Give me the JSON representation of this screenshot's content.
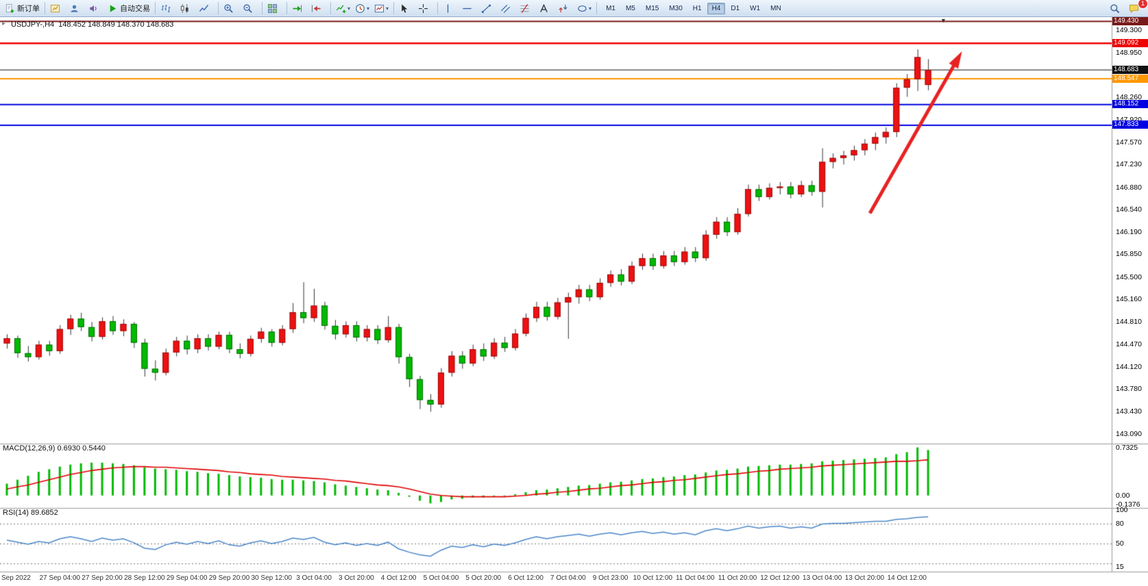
{
  "toolbar": {
    "groups": [
      {
        "items": [
          {
            "name": "new-order",
            "icon": "neworder",
            "label": "新订单"
          }
        ]
      },
      {
        "items": [
          {
            "name": "new-chart",
            "icon": "charts"
          },
          {
            "name": "profiles",
            "icon": "profiles"
          },
          {
            "name": "market-watch",
            "icon": "sound"
          },
          {
            "name": "auto-trading",
            "icon": "play",
            "label": "自动交易"
          }
        ]
      },
      {
        "items": [
          {
            "name": "bar-chart-mode",
            "icon": "bars"
          },
          {
            "name": "candlestick-mode",
            "icon": "candles"
          },
          {
            "name": "line-chart-mode",
            "icon": "linechart"
          }
        ]
      },
      {
        "items": [
          {
            "name": "zoom-in",
            "icon": "zoomin"
          },
          {
            "name": "zoom-out",
            "icon": "zoomout"
          }
        ]
      },
      {
        "items": [
          {
            "name": "tile-windows",
            "icon": "tile"
          }
        ]
      },
      {
        "items": [
          {
            "name": "auto-scroll",
            "icon": "autoscroll"
          },
          {
            "name": "chart-shift",
            "icon": "shift"
          }
        ]
      },
      {
        "items": [
          {
            "name": "indicators",
            "icon": "indicators",
            "dropdown": true
          },
          {
            "name": "periods",
            "icon": "clock",
            "dropdown": true
          },
          {
            "name": "templates",
            "icon": "template",
            "dropdown": true
          }
        ]
      },
      {
        "items": [
          {
            "name": "cursor-tool",
            "icon": "cursor"
          },
          {
            "name": "crosshair-tool",
            "icon": "crosshair"
          }
        ]
      },
      {
        "items": [
          {
            "name": "vertical-line-tool",
            "icon": "vline"
          },
          {
            "name": "horizontal-line-tool",
            "icon": "hline"
          },
          {
            "name": "trendline-tool",
            "icon": "trend"
          },
          {
            "name": "channel-tool",
            "icon": "channel"
          },
          {
            "name": "fibonacci-tool",
            "icon": "fibo"
          },
          {
            "name": "text-tool",
            "icon": "textA"
          },
          {
            "name": "arrows-tool",
            "icon": "arrows"
          },
          {
            "name": "shapes-tool",
            "icon": "shapes",
            "dropdown": true
          }
        ]
      }
    ],
    "timeframes": [
      {
        "label": "M1"
      },
      {
        "label": "M5"
      },
      {
        "label": "M15"
      },
      {
        "label": "M30"
      },
      {
        "label": "H1"
      },
      {
        "label": "H4",
        "active": true
      },
      {
        "label": "D1"
      },
      {
        "label": "W1"
      },
      {
        "label": "MN"
      }
    ],
    "right_items": [
      {
        "name": "search",
        "icon": "search"
      },
      {
        "name": "notifications",
        "icon": "chat",
        "badge": "1"
      }
    ]
  },
  "chart": {
    "symbol_period": "USDJPY-,H4",
    "ohlc": "148.452 148.849 148.370 148.683",
    "shift_marker": "▼",
    "one_click_marker": "▸"
  },
  "chart_data": {
    "type": "candlestick",
    "symbol": "USDJPY-",
    "timeframe": "H4",
    "title": "USDJPY-,H4 148.452 148.849 148.370 148.683",
    "candles": [
      [
        144.48,
        144.62,
        144.4,
        144.56
      ],
      [
        144.56,
        144.6,
        144.26,
        144.33
      ],
      [
        144.33,
        144.44,
        144.2,
        144.27
      ],
      [
        144.27,
        144.52,
        144.23,
        144.46
      ],
      [
        144.46,
        144.52,
        144.29,
        144.36
      ],
      [
        144.36,
        144.76,
        144.32,
        144.7
      ],
      [
        144.7,
        144.92,
        144.61,
        144.86
      ],
      [
        144.86,
        144.95,
        144.67,
        144.73
      ],
      [
        144.73,
        144.81,
        144.51,
        144.58
      ],
      [
        144.58,
        144.88,
        144.54,
        144.82
      ],
      [
        144.82,
        144.9,
        144.61,
        144.67
      ],
      [
        144.67,
        144.85,
        144.59,
        144.78
      ],
      [
        144.78,
        144.81,
        144.41,
        144.49
      ],
      [
        144.49,
        144.55,
        143.97,
        144.09
      ],
      [
        144.09,
        144.22,
        143.91,
        144.03
      ],
      [
        144.03,
        144.4,
        143.99,
        144.34
      ],
      [
        144.34,
        144.58,
        144.28,
        144.52
      ],
      [
        144.52,
        144.6,
        144.31,
        144.39
      ],
      [
        144.39,
        144.62,
        144.33,
        144.56
      ],
      [
        144.56,
        144.62,
        144.37,
        144.43
      ],
      [
        144.43,
        144.66,
        144.39,
        144.61
      ],
      [
        144.61,
        144.66,
        144.33,
        144.39
      ],
      [
        144.39,
        144.48,
        144.25,
        144.32
      ],
      [
        144.32,
        144.6,
        144.28,
        144.55
      ],
      [
        144.55,
        144.72,
        144.49,
        144.66
      ],
      [
        144.66,
        144.7,
        144.43,
        144.49
      ],
      [
        144.49,
        144.76,
        144.45,
        144.7
      ],
      [
        144.7,
        145.1,
        144.64,
        144.96
      ],
      [
        144.96,
        145.42,
        144.79,
        144.87
      ],
      [
        144.87,
        145.32,
        144.81,
        145.06
      ],
      [
        145.06,
        145.12,
        144.69,
        144.75
      ],
      [
        144.75,
        144.84,
        144.54,
        144.62
      ],
      [
        144.62,
        144.82,
        144.57,
        144.76
      ],
      [
        144.76,
        144.82,
        144.51,
        144.57
      ],
      [
        144.57,
        144.76,
        144.51,
        144.7
      ],
      [
        144.7,
        144.76,
        144.47,
        144.53
      ],
      [
        144.53,
        144.9,
        144.49,
        144.73
      ],
      [
        144.73,
        144.78,
        144.17,
        144.27
      ],
      [
        144.27,
        144.32,
        143.81,
        143.93
      ],
      [
        143.93,
        143.98,
        143.47,
        143.61
      ],
      [
        143.61,
        143.7,
        143.43,
        143.54
      ],
      [
        143.54,
        144.1,
        143.49,
        144.03
      ],
      [
        144.03,
        144.36,
        143.97,
        144.29
      ],
      [
        144.29,
        144.36,
        144.09,
        144.17
      ],
      [
        144.17,
        144.46,
        144.13,
        144.39
      ],
      [
        144.39,
        144.48,
        144.21,
        144.28
      ],
      [
        144.28,
        144.56,
        144.24,
        144.49
      ],
      [
        144.49,
        144.58,
        144.35,
        144.41
      ],
      [
        144.41,
        144.7,
        144.37,
        144.63
      ],
      [
        144.63,
        144.94,
        144.59,
        144.87
      ],
      [
        144.87,
        145.12,
        144.81,
        145.04
      ],
      [
        145.04,
        145.12,
        144.83,
        144.89
      ],
      [
        144.89,
        145.18,
        144.85,
        145.11
      ],
      [
        145.11,
        145.26,
        144.55,
        145.19
      ],
      [
        145.19,
        145.38,
        145.09,
        145.31
      ],
      [
        145.31,
        145.38,
        145.13,
        145.19
      ],
      [
        145.19,
        145.48,
        145.15,
        145.41
      ],
      [
        145.41,
        145.6,
        145.35,
        145.54
      ],
      [
        145.54,
        145.62,
        145.37,
        145.43
      ],
      [
        145.43,
        145.74,
        145.39,
        145.67
      ],
      [
        145.67,
        145.86,
        145.61,
        145.79
      ],
      [
        145.79,
        145.86,
        145.61,
        145.67
      ],
      [
        145.67,
        145.9,
        145.63,
        145.83
      ],
      [
        145.83,
        145.9,
        145.67,
        145.73
      ],
      [
        145.73,
        145.96,
        145.69,
        145.89
      ],
      [
        145.89,
        145.96,
        145.73,
        145.79
      ],
      [
        145.79,
        146.22,
        145.75,
        146.15
      ],
      [
        146.15,
        146.42,
        146.09,
        146.35
      ],
      [
        146.35,
        146.42,
        146.13,
        146.19
      ],
      [
        146.19,
        146.56,
        146.15,
        146.47
      ],
      [
        146.47,
        146.92,
        146.43,
        146.85
      ],
      [
        146.85,
        146.92,
        146.67,
        146.73
      ],
      [
        146.73,
        146.94,
        146.69,
        146.87
      ],
      [
        146.87,
        146.96,
        146.77,
        146.89
      ],
      [
        146.89,
        146.96,
        146.71,
        146.77
      ],
      [
        146.77,
        146.98,
        146.73,
        146.91
      ],
      [
        146.91,
        146.98,
        146.75,
        146.81
      ],
      [
        146.81,
        147.48,
        146.57,
        147.27
      ],
      [
        147.27,
        147.4,
        147.17,
        147.33
      ],
      [
        147.33,
        147.44,
        147.23,
        147.37
      ],
      [
        147.37,
        147.52,
        147.29,
        147.45
      ],
      [
        147.45,
        147.62,
        147.37,
        147.55
      ],
      [
        147.55,
        147.72,
        147.45,
        147.65
      ],
      [
        147.65,
        147.8,
        147.55,
        147.73
      ],
      [
        147.73,
        148.48,
        147.65,
        148.41
      ],
      [
        148.41,
        148.62,
        148.27,
        148.54
      ],
      [
        148.54,
        149.0,
        148.36,
        148.88
      ],
      [
        148.452,
        148.849,
        148.37,
        148.683
      ]
    ],
    "price_ticks": [
      "149.300",
      "148.950",
      "148.260",
      "147.920",
      "147.570",
      "147.230",
      "146.880",
      "146.540",
      "146.190",
      "145.850",
      "145.500",
      "145.160",
      "144.810",
      "144.470",
      "144.120",
      "143.780",
      "143.430",
      "143.090"
    ],
    "hlines": [
      {
        "label": "149.430",
        "price": 149.43,
        "color": "#7a1a1a",
        "width": 2
      },
      {
        "label": "149.092",
        "price": 149.092,
        "color": "#ee0000",
        "width": 2.5
      },
      {
        "label": "148.683",
        "price": 148.683,
        "color": "#111111",
        "width": 1
      },
      {
        "label": "148.547",
        "price": 148.547,
        "color": "#ff9800",
        "width": 2
      },
      {
        "label": "148.152",
        "price": 148.152,
        "color": "#0000e0",
        "width": 2
      },
      {
        "label": "147.833",
        "price": 147.833,
        "color": "#0000e0",
        "width": 2
      }
    ],
    "time_axis": {
      "first": "Sep 2022",
      "start_index": 5,
      "step": 4,
      "labels": [
        "27 Sep 04:00",
        "27 Sep 20:00",
        "28 Sep 12:00",
        "29 Sep 04:00",
        "29 Sep 20:00",
        "30 Sep 12:00",
        "3 Oct 04:00",
        "3 Oct 20:00",
        "4 Oct 12:00",
        "5 Oct 04:00",
        "5 Oct 20:00",
        "6 Oct 12:00",
        "7 Oct 04:00",
        "9 Oct 23:00",
        "10 Oct 12:00",
        "11 Oct 04:00",
        "11 Oct 20:00",
        "12 Oct 12:00",
        "13 Oct 04:00",
        "13 Oct 20:00",
        "14 Oct 12:00"
      ]
    },
    "macd": {
      "title": "MACD(12,26,9)",
      "values": "0.6930 0.5440",
      "ticks": [
        "0.7325",
        "0.00",
        "-0.1376"
      ],
      "tick_values": [
        0.7325,
        0,
        -0.1376
      ],
      "hist": [
        0.18,
        0.24,
        0.3,
        0.36,
        0.4,
        0.44,
        0.47,
        0.49,
        0.5,
        0.5,
        0.49,
        0.48,
        0.46,
        0.43,
        0.41,
        0.4,
        0.39,
        0.37,
        0.36,
        0.34,
        0.33,
        0.31,
        0.29,
        0.28,
        0.27,
        0.25,
        0.24,
        0.24,
        0.23,
        0.22,
        0.2,
        0.17,
        0.15,
        0.13,
        0.11,
        0.09,
        0.08,
        0.04,
        -0.02,
        -0.08,
        -0.12,
        -0.1,
        -0.06,
        -0.05,
        -0.03,
        -0.03,
        -0.01,
        0.0,
        0.02,
        0.05,
        0.08,
        0.09,
        0.11,
        0.13,
        0.15,
        0.16,
        0.18,
        0.2,
        0.21,
        0.23,
        0.25,
        0.26,
        0.28,
        0.29,
        0.31,
        0.32,
        0.35,
        0.38,
        0.39,
        0.41,
        0.44,
        0.45,
        0.46,
        0.47,
        0.47,
        0.48,
        0.49,
        0.52,
        0.53,
        0.54,
        0.55,
        0.56,
        0.57,
        0.58,
        0.63,
        0.66,
        0.7325,
        0.693
      ],
      "signal": [
        0.1,
        0.13,
        0.16,
        0.2,
        0.24,
        0.28,
        0.32,
        0.35,
        0.38,
        0.4,
        0.42,
        0.43,
        0.44,
        0.44,
        0.43,
        0.43,
        0.42,
        0.41,
        0.4,
        0.39,
        0.38,
        0.36,
        0.35,
        0.33,
        0.32,
        0.31,
        0.29,
        0.28,
        0.27,
        0.26,
        0.25,
        0.23,
        0.22,
        0.2,
        0.18,
        0.16,
        0.15,
        0.13,
        0.1,
        0.06,
        0.02,
        0.0,
        -0.01,
        -0.02,
        -0.02,
        -0.02,
        -0.02,
        -0.02,
        -0.01,
        0.0,
        0.02,
        0.03,
        0.05,
        0.06,
        0.08,
        0.1,
        0.11,
        0.13,
        0.15,
        0.16,
        0.18,
        0.2,
        0.21,
        0.23,
        0.24,
        0.26,
        0.28,
        0.3,
        0.32,
        0.33,
        0.35,
        0.37,
        0.38,
        0.4,
        0.41,
        0.42,
        0.43,
        0.45,
        0.46,
        0.47,
        0.48,
        0.49,
        0.5,
        0.51,
        0.52,
        0.52,
        0.53,
        0.544
      ]
    },
    "rsi": {
      "title": "RSI(14)",
      "value": "89.6852",
      "ticks": [
        "100",
        "80",
        "50",
        "15"
      ],
      "tick_values": [
        100,
        80,
        50,
        15
      ],
      "levels": [
        80,
        50,
        20
      ],
      "values": [
        55,
        52,
        49,
        53,
        51,
        57,
        60,
        57,
        53,
        58,
        55,
        57,
        51,
        43,
        41,
        48,
        52,
        49,
        53,
        50,
        54,
        48,
        46,
        51,
        54,
        50,
        53,
        58,
        56,
        59,
        52,
        48,
        51,
        47,
        50,
        47,
        52,
        42,
        37,
        33,
        31,
        40,
        46,
        44,
        48,
        45,
        49,
        47,
        51,
        56,
        60,
        57,
        60,
        62,
        64,
        61,
        64,
        66,
        63,
        66,
        68,
        65,
        67,
        64,
        66,
        63,
        69,
        72,
        69,
        72,
        76,
        73,
        75,
        76,
        73,
        75,
        73,
        79,
        80,
        80,
        81,
        82,
        83,
        83,
        86,
        87,
        89,
        89.6852
      ]
    },
    "arrow": {
      "from_index": 81.5,
      "from_price": 146.48,
      "to_index": 90.2,
      "to_price": 148.97
    },
    "colors": {
      "up_fill": "#ee1111",
      "up_border": "#990f0f",
      "down_fill": "#00bb00",
      "down_border": "#056d05",
      "wick": "#333333",
      "macd_hist": "#00bb00",
      "macd_signal": "#e00000",
      "rsi_line": "#4a86c8",
      "arrow": "#e82222",
      "panel_border": "#9a9a9a"
    }
  }
}
